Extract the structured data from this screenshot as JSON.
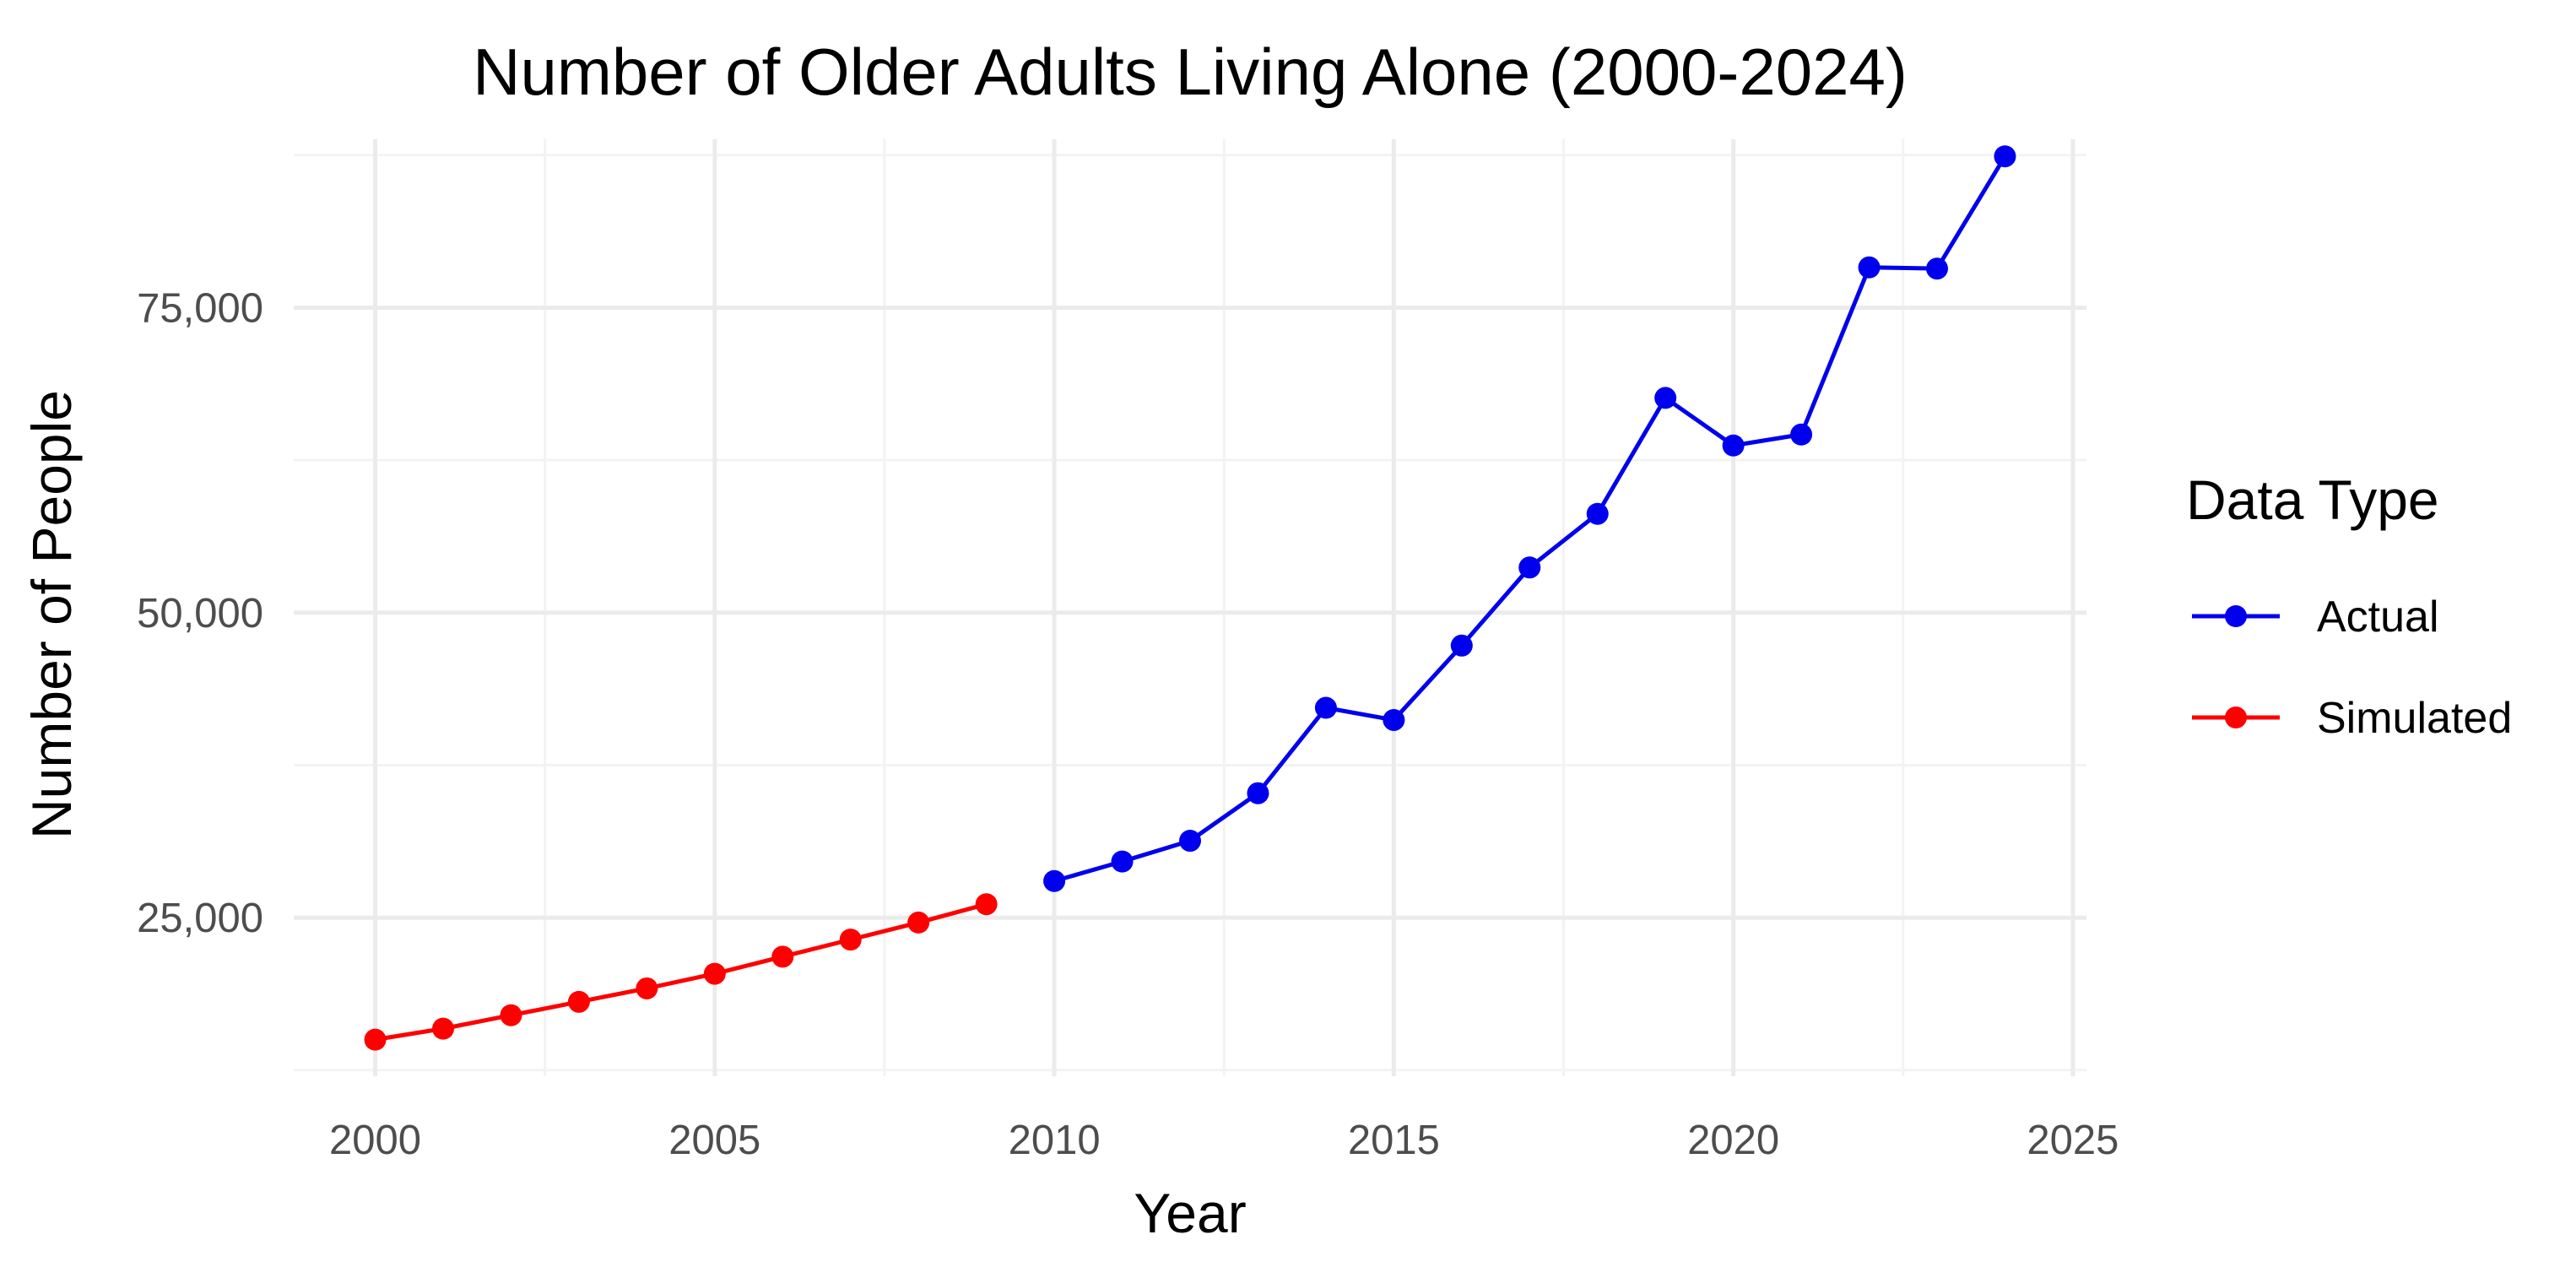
{
  "chart_data": {
    "type": "line",
    "title": "Number of Older Adults Living Alone (2000-2024)",
    "xlabel": "Year",
    "ylabel": "Number of People",
    "xlim": [
      1998.8,
      2025.2
    ],
    "ylim": [
      12000,
      88800
    ],
    "x_ticks": [
      2000,
      2005,
      2010,
      2015,
      2020,
      2025
    ],
    "x_tick_labels": [
      "2000",
      "2005",
      "2010",
      "2015",
      "2020",
      "2025"
    ],
    "x_minor_ticks": [
      2002.5,
      2007.5,
      2012.5,
      2017.5,
      2022.5
    ],
    "y_ticks": [
      25000,
      50000,
      75000
    ],
    "y_tick_labels": [
      "25,000",
      "50,000",
      "75,000"
    ],
    "y_minor_ticks": [
      12500,
      37500,
      62500,
      87500
    ],
    "grid": true,
    "legend": {
      "title": "Data Type",
      "position": "right"
    },
    "series": [
      {
        "name": "Actual",
        "color": "#0000ee",
        "x": [
          2010,
          2011,
          2012,
          2013,
          2014,
          2015,
          2016,
          2017,
          2018,
          2019,
          2020,
          2021,
          2022,
          2023,
          2024
        ],
        "y": [
          28000,
          29600,
          31300,
          35200,
          42200,
          41200,
          47300,
          53700,
          58100,
          67600,
          63700,
          64600,
          78300,
          78200,
          87400
        ]
      },
      {
        "name": "Simulated",
        "color": "#ff0000",
        "x": [
          2000,
          2001,
          2002,
          2003,
          2004,
          2005,
          2006,
          2007,
          2008,
          2009
        ],
        "y": [
          15000,
          15900,
          17000,
          18100,
          19200,
          20400,
          21800,
          23200,
          24600,
          26100
        ]
      }
    ]
  }
}
